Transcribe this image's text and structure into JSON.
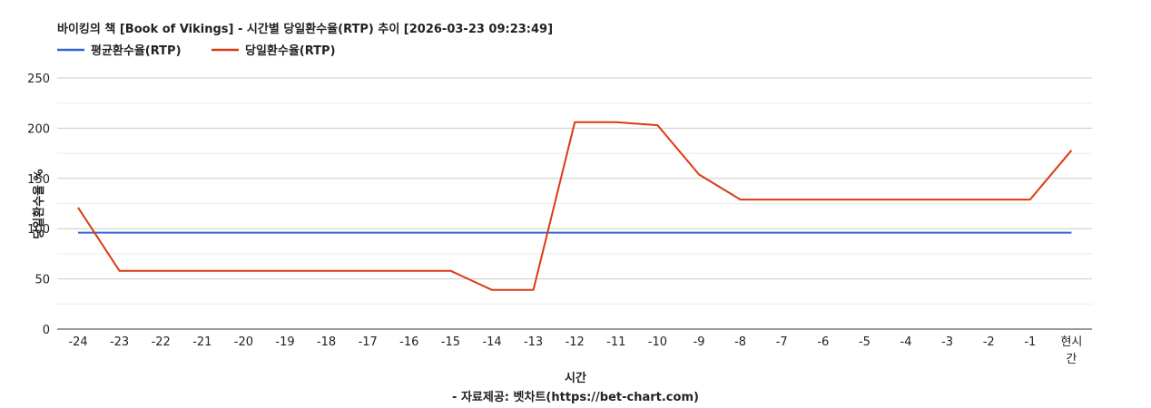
{
  "chart_data": {
    "type": "line",
    "title": "바이킹의 책 [Book of Vikings] - 시간별 당일환수율(RTP) 추이 [2026-03-23 09:23:49]",
    "xlabel": "시간",
    "ylabel": "당일환수율 %",
    "source": "- 자료제공: 벳차트(https://bet-chart.com)",
    "categories": [
      "-24",
      "-23",
      "-22",
      "-21",
      "-20",
      "-19",
      "-18",
      "-17",
      "-16",
      "-15",
      "-14",
      "-13",
      "-12",
      "-11",
      "-10",
      "-9",
      "-8",
      "-7",
      "-6",
      "-5",
      "-4",
      "-3",
      "-2",
      "-1",
      "현시간"
    ],
    "ylim": [
      0,
      250
    ],
    "yticks": [
      0,
      50,
      100,
      150,
      200,
      250
    ],
    "grid": true,
    "legend_position": "top-left",
    "series": [
      {
        "name": "평균환수율(RTP)",
        "color": "#3366cc",
        "values": [
          96,
          96,
          96,
          96,
          96,
          96,
          96,
          96,
          96,
          96,
          96,
          96,
          96,
          96,
          96,
          96,
          96,
          96,
          96,
          96,
          96,
          96,
          96,
          96,
          96
        ]
      },
      {
        "name": "당일환수율(RTP)",
        "color": "#dc3912",
        "values": [
          121,
          58,
          58,
          58,
          58,
          58,
          58,
          58,
          58,
          58,
          39,
          39,
          206,
          206,
          203,
          154,
          129,
          129,
          129,
          129,
          129,
          129,
          129,
          129,
          178
        ]
      }
    ]
  }
}
